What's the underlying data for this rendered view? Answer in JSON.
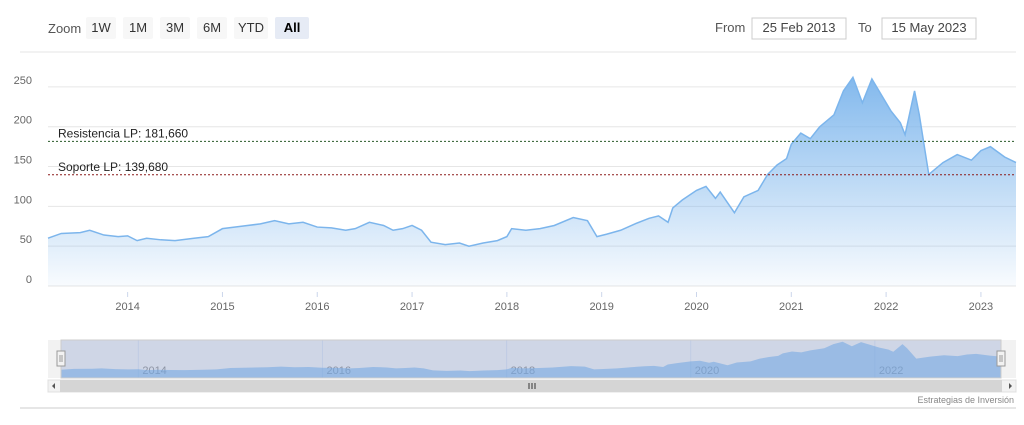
{
  "ui": {
    "zoom_label": "Zoom",
    "zoom_buttons": [
      "1W",
      "1M",
      "3M",
      "6M",
      "YTD",
      "All"
    ],
    "selected_button": 5,
    "from_label": "From",
    "from": "25 Feb 2013",
    "to_label": "To",
    "to": "15 May 2023",
    "credit": "Estrategias de Inversión"
  },
  "chart_data": {
    "type": "area",
    "color": "#7cb5ec",
    "x": [
      2013.16,
      2013.3,
      2013.5,
      2013.6,
      2013.75,
      2013.9,
      2014.0,
      2014.1,
      2014.2,
      2014.35,
      2014.5,
      2014.7,
      2014.85,
      2015.0,
      2015.2,
      2015.4,
      2015.55,
      2015.7,
      2015.85,
      2016.0,
      2016.15,
      2016.3,
      2016.4,
      2016.55,
      2016.7,
      2016.8,
      2016.9,
      2017.0,
      2017.1,
      2017.2,
      2017.35,
      2017.5,
      2017.6,
      2017.75,
      2017.9,
      2018.0,
      2018.05,
      2018.2,
      2018.35,
      2018.5,
      2018.7,
      2018.85,
      2018.95,
      2019.05,
      2019.2,
      2019.35,
      2019.5,
      2019.6,
      2019.7,
      2019.75,
      2019.85,
      2020.0,
      2020.1,
      2020.2,
      2020.25,
      2020.4,
      2020.5,
      2020.65,
      2020.75,
      2020.85,
      2020.95,
      2021.0,
      2021.1,
      2021.2,
      2021.3,
      2021.45,
      2021.55,
      2021.65,
      2021.75,
      2021.85,
      2021.95,
      2022.05,
      2022.15,
      2022.2,
      2022.3,
      2022.35,
      2022.45,
      2022.6,
      2022.75,
      2022.9,
      2023.0,
      2023.1,
      2023.25,
      2023.37
    ],
    "values": [
      60,
      66,
      67,
      70,
      64,
      62,
      63,
      57,
      60,
      58,
      57,
      60,
      62,
      72,
      75,
      78,
      82,
      78,
      80,
      74,
      73,
      70,
      72,
      80,
      76,
      70,
      72,
      76,
      70,
      55,
      52,
      54,
      50,
      54,
      57,
      62,
      72,
      70,
      72,
      76,
      86,
      82,
      62,
      65,
      70,
      78,
      85,
      88,
      80,
      98,
      108,
      120,
      125,
      110,
      118,
      92,
      112,
      120,
      140,
      152,
      160,
      178,
      192,
      185,
      200,
      215,
      245,
      262,
      230,
      260,
      240,
      220,
      205,
      190,
      245,
      215,
      140,
      155,
      165,
      158,
      170,
      175,
      162,
      155
    ],
    "xlim": [
      2013.16,
      2023.37
    ],
    "xticks": [
      2014,
      2015,
      2016,
      2017,
      2018,
      2019,
      2020,
      2021,
      2022,
      2023
    ],
    "ylim": [
      0,
      275
    ],
    "yticks": [
      0,
      50,
      100,
      150,
      200,
      250
    ],
    "grid": true,
    "plot_lines": [
      {
        "label": "Resistencia LP: 181,660",
        "value": 181.66,
        "color": "#2a5a2a"
      },
      {
        "label": "Soporte LP: 139,680",
        "value": 139.68,
        "color": "#8b1a1a"
      }
    ],
    "navigator": {
      "xticks": [
        2014,
        2016,
        2018,
        2020,
        2022
      ]
    }
  }
}
